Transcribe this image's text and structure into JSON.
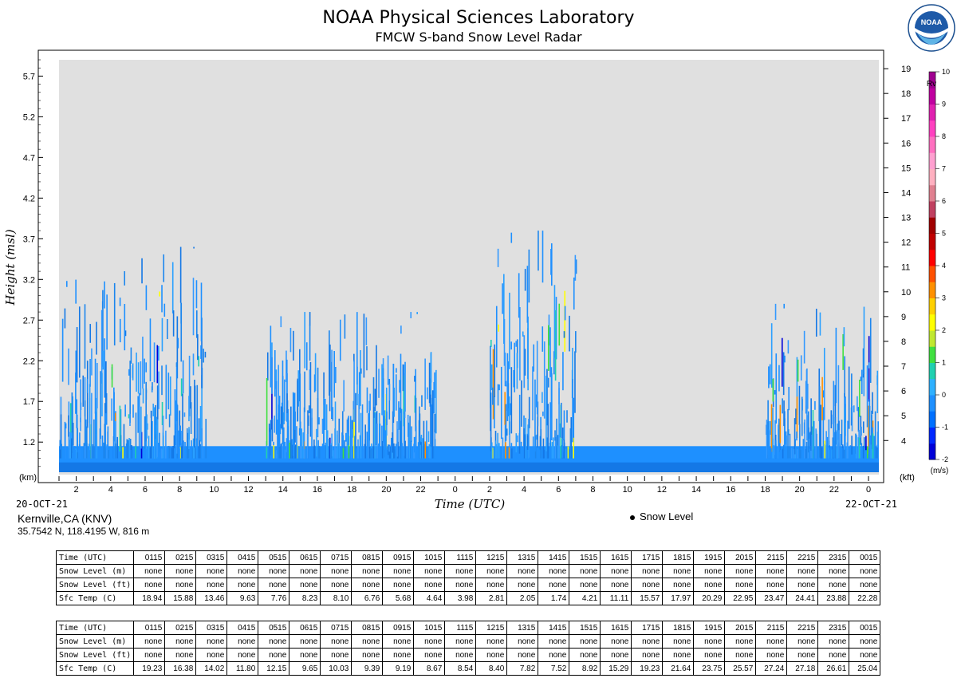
{
  "header": {
    "title": "NOAA Physical Sciences Laboratory",
    "subtitle": "FMCW S-band Snow Level Radar",
    "logo_text": "NOAA"
  },
  "chart_data": {
    "type": "heatmap",
    "title": "NOAA Physical Sciences Laboratory",
    "subtitle": "FMCW S-band Snow Level Radar",
    "xlabel": "Time (UTC)",
    "ylabel": "Height (msl)",
    "y_unit_left": "(km)",
    "y_unit_right": "(kft)",
    "x_ticks": [
      "2",
      "4",
      "6",
      "8",
      "10",
      "12",
      "14",
      "16",
      "18",
      "20",
      "22",
      "0",
      "2",
      "4",
      "6",
      "8",
      "10",
      "12",
      "14",
      "16",
      "18",
      "20",
      "22",
      "0"
    ],
    "x_hours_range": [
      1.0,
      48.6
    ],
    "start_date": "20-OCT-21",
    "end_date": "22-OCT-21",
    "y_ticks_km": [
      "1.2",
      "1.7",
      "2.2",
      "2.7",
      "3.2",
      "3.7",
      "4.2",
      "4.7",
      "5.2",
      "5.7"
    ],
    "ylim_km": [
      0.8,
      5.9
    ],
    "y_ticks_kft": [
      "4",
      "5",
      "6",
      "7",
      "8",
      "9",
      "10",
      "11",
      "12",
      "13",
      "14",
      "15",
      "16",
      "17",
      "18",
      "19"
    ],
    "colorbar": {
      "label": "Rv",
      "unit": "(m/s)",
      "range": [
        -2,
        10
      ],
      "ticks": [
        "10",
        "9",
        "8",
        "7",
        "6",
        "5",
        "4",
        "3",
        "2",
        "1",
        "0",
        "-1",
        "-2"
      ]
    },
    "background_color": "#e0e0e0",
    "dominant_color": "#1e90ff",
    "echo_regions": [
      {
        "from_hour": 1.0,
        "to_hour": 9.5,
        "top_km": 3.6
      },
      {
        "from_hour": 13.0,
        "to_hour": 23.0,
        "top_km": 2.8
      },
      {
        "from_hour": 26.0,
        "to_hour": 31.0,
        "top_km": 3.8
      },
      {
        "from_hour": 42.0,
        "to_hour": 48.6,
        "top_km": 2.9
      }
    ],
    "snow_level": "none"
  },
  "station": {
    "name": "Kernville,CA (KNV)",
    "coords": "35.7542 N, 118.4195 W, 816 m"
  },
  "legend": {
    "snow_level_label": "Snow Level"
  },
  "tables": [
    {
      "times": [
        "0115",
        "0215",
        "0315",
        "0415",
        "0515",
        "0615",
        "0715",
        "0815",
        "0915",
        "1015",
        "1115",
        "1215",
        "1315",
        "1415",
        "1515",
        "1615",
        "1715",
        "1815",
        "1915",
        "2015",
        "2115",
        "2215",
        "2315",
        "0015"
      ],
      "labels": {
        "time": "Time (UTC)",
        "snow_m": "Snow Level (m)",
        "snow_ft": "Snow Level (ft)",
        "temp": "Sfc Temp (C)"
      },
      "snow_m": [
        "none",
        "none",
        "none",
        "none",
        "none",
        "none",
        "none",
        "none",
        "none",
        "none",
        "none",
        "none",
        "none",
        "none",
        "none",
        "none",
        "none",
        "none",
        "none",
        "none",
        "none",
        "none",
        "none",
        "none"
      ],
      "snow_ft": [
        "none",
        "none",
        "none",
        "none",
        "none",
        "none",
        "none",
        "none",
        "none",
        "none",
        "none",
        "none",
        "none",
        "none",
        "none",
        "none",
        "none",
        "none",
        "none",
        "none",
        "none",
        "none",
        "none",
        "none"
      ],
      "temp": [
        "18.94",
        "15.88",
        "13.46",
        "9.63",
        "7.76",
        "8.23",
        "8.10",
        "6.76",
        "5.68",
        "4.64",
        "3.98",
        "2.81",
        "2.05",
        "1.74",
        "4.21",
        "11.11",
        "15.57",
        "17.97",
        "20.29",
        "22.95",
        "23.47",
        "24.41",
        "23.88",
        "22.28"
      ]
    },
    {
      "times": [
        "0115",
        "0215",
        "0315",
        "0415",
        "0515",
        "0615",
        "0715",
        "0815",
        "0915",
        "1015",
        "1115",
        "1215",
        "1315",
        "1415",
        "1515",
        "1615",
        "1715",
        "1815",
        "1915",
        "2015",
        "2115",
        "2215",
        "2315",
        "0015"
      ],
      "labels": {
        "time": "Time (UTC)",
        "snow_m": "Snow Level (m)",
        "snow_ft": "Snow Level (ft)",
        "temp": "Sfc Temp (C)"
      },
      "snow_m": [
        "none",
        "none",
        "none",
        "none",
        "none",
        "none",
        "none",
        "none",
        "none",
        "none",
        "none",
        "none",
        "none",
        "none",
        "none",
        "none",
        "none",
        "none",
        "none",
        "none",
        "none",
        "none",
        "none",
        "none"
      ],
      "snow_ft": [
        "none",
        "none",
        "none",
        "none",
        "none",
        "none",
        "none",
        "none",
        "none",
        "none",
        "none",
        "none",
        "none",
        "none",
        "none",
        "none",
        "none",
        "none",
        "none",
        "none",
        "none",
        "none",
        "none",
        "none"
      ],
      "temp": [
        "19.23",
        "16.38",
        "14.02",
        "11.80",
        "12.15",
        "9.65",
        "10.03",
        "9.39",
        "9.19",
        "8.67",
        "8.54",
        "8.40",
        "7.82",
        "7.52",
        "8.92",
        "15.29",
        "19.23",
        "21.64",
        "23.75",
        "25.57",
        "27.24",
        "27.18",
        "26.61",
        "25.04"
      ]
    }
  ]
}
